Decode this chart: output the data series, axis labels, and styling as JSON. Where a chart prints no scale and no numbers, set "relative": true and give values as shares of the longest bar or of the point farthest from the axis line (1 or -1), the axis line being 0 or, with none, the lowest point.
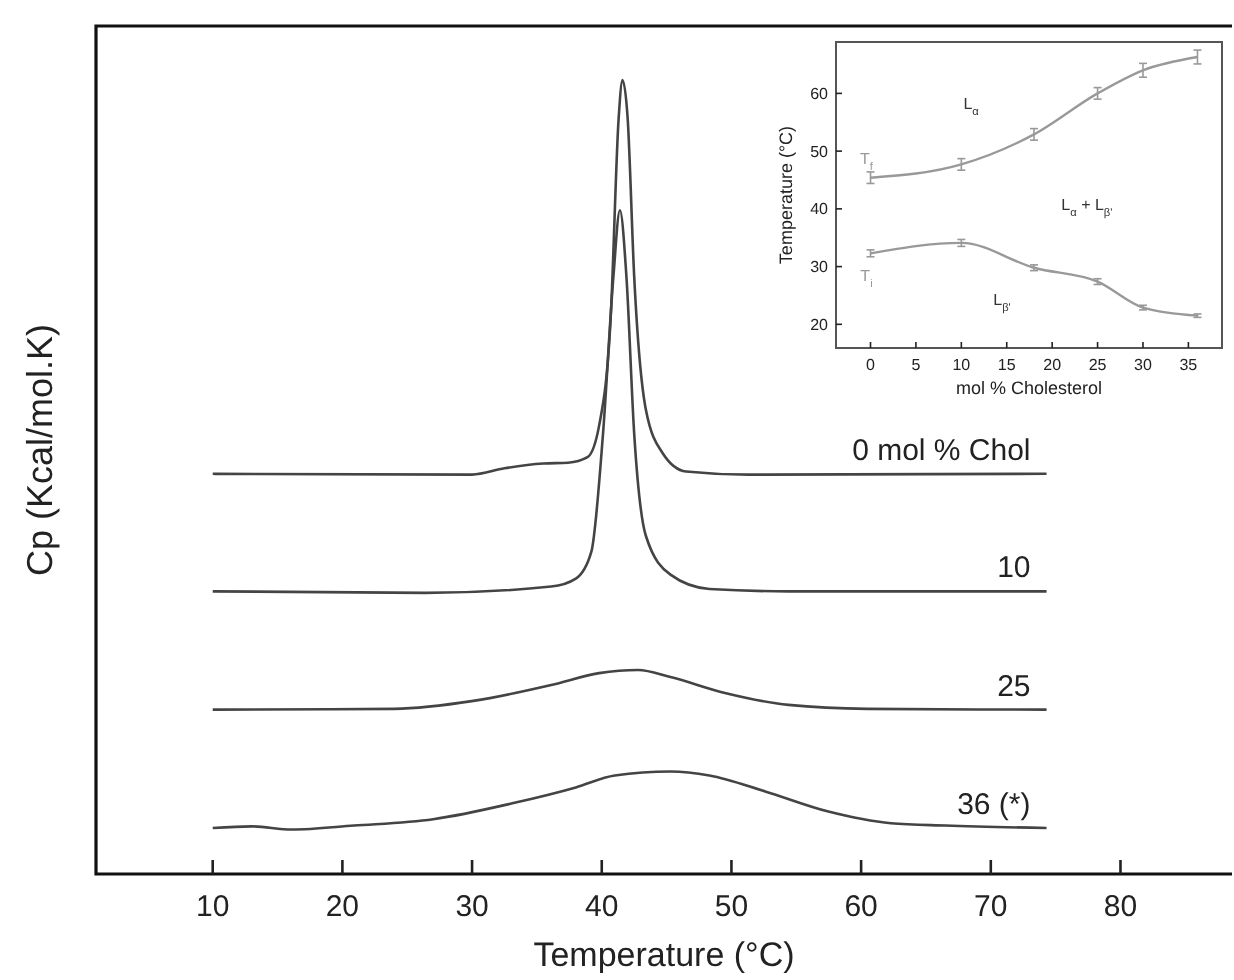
{
  "chart_data": [
    {
      "type": "line",
      "relative": true,
      "xlabel": "Temperature (°C)",
      "ylabel": "Cp (Kcal/mol.K)",
      "xlim": [
        1,
        88.6
      ],
      "xticks": [
        10,
        20,
        30,
        40,
        50,
        60,
        70,
        80
      ],
      "tick_labels": "x",
      "grid": false,
      "marker": "none",
      "line_style": "solid",
      "series": [
        {
          "name": "0 mol % Chol",
          "color": "#444444",
          "x": [
            10,
            30,
            32.5,
            35.5,
            37.4,
            38.9,
            39.8,
            40.7,
            41.3,
            41.6,
            42.0,
            42.5,
            43.4,
            44.7,
            46.5,
            51.3,
            74.3
          ],
          "values": [
            0.504,
            0.503,
            0.511,
            0.517,
            0.518,
            0.525,
            0.565,
            0.704,
            0.951,
            1.0,
            0.951,
            0.753,
            0.585,
            0.53,
            0.507,
            0.503,
            0.504
          ]
        },
        {
          "name": "10",
          "color": "#444444",
          "x": [
            10,
            26.4,
            36.1,
            38,
            39.2,
            40.1,
            40.9,
            41.4,
            41.9,
            42.5,
            43.4,
            45.3,
            48.3,
            54.4,
            74.3
          ],
          "values": [
            0.356,
            0.354,
            0.362,
            0.372,
            0.406,
            0.555,
            0.753,
            0.836,
            0.753,
            0.555,
            0.426,
            0.377,
            0.359,
            0.356,
            0.356
          ]
        },
        {
          "name": "25",
          "color": "#444444",
          "x": [
            10,
            24,
            30.1,
            36.1,
            39.8,
            42.8,
            45.3,
            49.5,
            54.4,
            60.5,
            74.3
          ],
          "values": [
            0.207,
            0.208,
            0.218,
            0.238,
            0.253,
            0.257,
            0.248,
            0.228,
            0.213,
            0.208,
            0.207
          ]
        },
        {
          "name": "36 (*)",
          "color": "#444444",
          "x": [
            10,
            13,
            16.1,
            20.9,
            27,
            33.1,
            38,
            41,
            45.3,
            48.3,
            52.6,
            57.4,
            62.3,
            66.5,
            74.3
          ],
          "values": [
            0.058,
            0.06,
            0.056,
            0.061,
            0.069,
            0.089,
            0.109,
            0.124,
            0.129,
            0.124,
            0.104,
            0.079,
            0.064,
            0.061,
            0.058
          ]
        }
      ]
    },
    {
      "type": "line",
      "xlabel": "mol % Cholesterol",
      "ylabel": "Temperature (°C)",
      "xlim": [
        -3.8,
        38.7
      ],
      "xticks": [
        0,
        5,
        10,
        15,
        20,
        25,
        30,
        35
      ],
      "ylim": [
        15.9,
        68.9
      ],
      "yticks": [
        20,
        30,
        40,
        50,
        60
      ],
      "grid": false,
      "marker": "none",
      "line_style": "solid",
      "series": [
        {
          "name": "T$_{f}$",
          "color": "#999999",
          "x": [
            0,
            10,
            18,
            25,
            30,
            36
          ],
          "values": [
            45.4,
            47.7,
            52.9,
            60,
            64,
            66.3
          ],
          "errors": [
            1,
            1,
            1,
            1,
            1.2,
            1.2
          ]
        },
        {
          "name": "T$_{i}$",
          "color": "#999999",
          "x": [
            0,
            10,
            18,
            25,
            30,
            36
          ],
          "values": [
            32.3,
            34.1,
            29.8,
            27.4,
            22.9,
            21.5
          ],
          "errors": [
            0.6,
            0.6,
            0.5,
            0.5,
            0.4,
            0.3
          ]
        }
      ],
      "annotations": [
        "L$_{α}$",
        "L$_{α}$ + L$_{β'}$",
        "L$_{β'}$"
      ]
    }
  ]
}
